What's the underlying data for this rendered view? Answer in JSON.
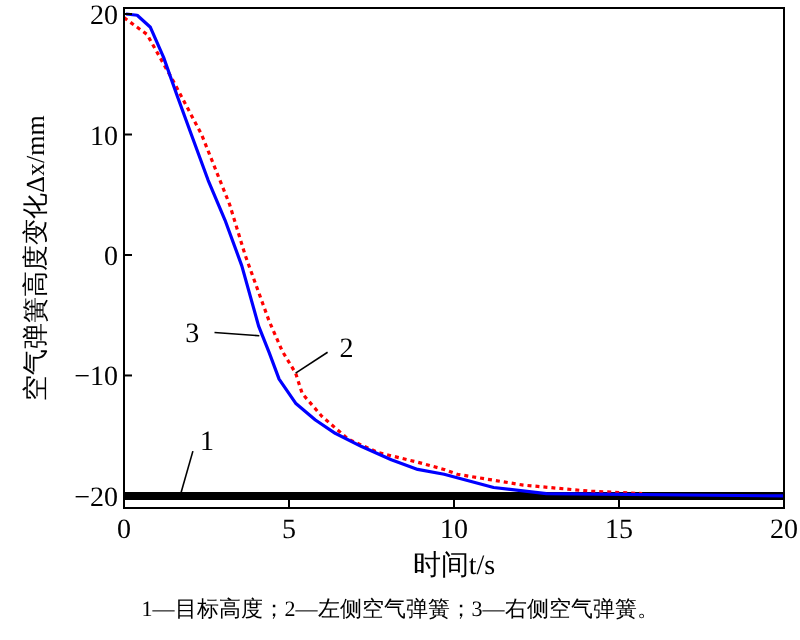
{
  "chart_data": {
    "type": "line",
    "xlabel": "时间$_{}$t/s",
    "ylabel": "空气弹簧高度变化Δx/mm",
    "xlim": [
      0,
      20
    ],
    "ylim": [
      -21,
      20.5
    ],
    "xticks": [
      0,
      5,
      10,
      15,
      20
    ],
    "yticks": [
      -20,
      -10,
      0,
      10,
      20
    ],
    "grid": false,
    "series": [
      {
        "color": "#000000",
        "line_style": "solid",
        "x": [
          0,
          20
        ],
        "values": [
          -20,
          -20
        ]
      },
      {
        "color": "#ff0000",
        "line_style": "dotted",
        "x": [
          0,
          0.7,
          1.5,
          2.35,
          3.2,
          3.67,
          4.0,
          4.4,
          4.8,
          5.2,
          5.4,
          6.0,
          6.8,
          7.7,
          8.9,
          9.7,
          10.1,
          12.1,
          14.1,
          15.7
        ],
        "values": [
          19.7,
          18.3,
          14.4,
          10,
          4.2,
          0,
          -2.5,
          -5.5,
          -8,
          -9.8,
          -11.5,
          -13.4,
          -15.3,
          -16.4,
          -17.2,
          -17.8,
          -18.2,
          -19.1,
          -19.6,
          -19.8
        ]
      },
      {
        "color": "#0000ff",
        "line_style": "solid",
        "x": [
          0.06,
          0.4,
          0.8,
          1.2,
          1.6,
          2.04,
          2.55,
          3.06,
          3.57,
          4.08,
          4.4,
          4.7,
          5.2,
          5.8,
          6.4,
          7.2,
          8.1,
          8.9,
          9.7,
          11.2,
          12.8,
          20
        ],
        "values": [
          20,
          19.9,
          18.9,
          16.4,
          13.3,
          10,
          6.2,
          2.9,
          -0.9,
          -5.9,
          -8.1,
          -10.3,
          -12.3,
          -13.7,
          -14.8,
          -15.9,
          -17,
          -17.8,
          -18.2,
          -19.3,
          -19.8,
          -20
        ]
      }
    ],
    "annotations": [
      {
        "text": "1",
        "x": 1.7,
        "y": -20
      },
      {
        "text": "2",
        "x": 5.2,
        "y": -9.8
      },
      {
        "text": "3",
        "x": 4.1,
        "y": -6.7
      },
      "1—目标高度；2—左侧空气弹簧；3—右侧空气弹簧。"
    ]
  }
}
